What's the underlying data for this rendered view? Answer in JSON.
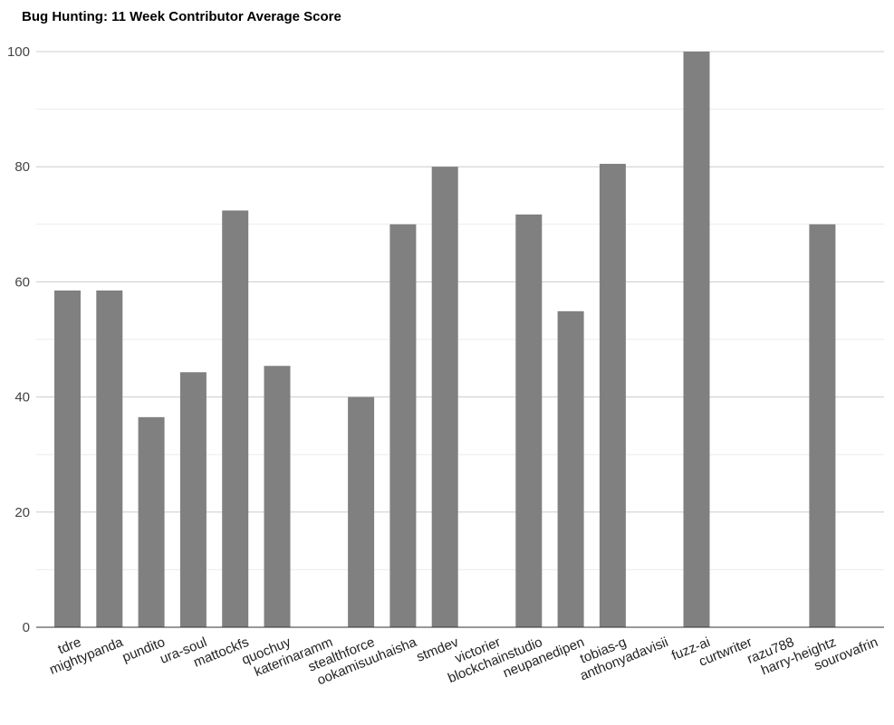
{
  "chart_data": {
    "type": "bar",
    "title": "Bug Hunting: 11 Week Contributor Average Score",
    "xlabel": "",
    "ylabel": "",
    "ylim": [
      0,
      100
    ],
    "yticks": [
      0,
      20,
      40,
      60,
      80,
      100
    ],
    "grid": true,
    "legend": "none",
    "bar_color": "#808080",
    "categories": [
      "tdre",
      "mightypanda",
      "pundito",
      "ura-soul",
      "mattockfs",
      "quochuy",
      "katerinaramm",
      "stealthforce",
      "ookamisuuhaisha",
      "stmdev",
      "victorier",
      "blockchainstudio",
      "neupanedipen",
      "tobias-g",
      "anthonyadavisii",
      "fuzz-ai",
      "curtwriter",
      "razu788",
      "harry-heightz",
      "sourovafrin"
    ],
    "values": [
      58.5,
      58.5,
      36.5,
      44.3,
      72.4,
      45.4,
      0,
      40,
      70,
      80,
      0,
      71.7,
      54.9,
      80.5,
      0,
      100,
      0,
      0,
      70,
      0
    ]
  }
}
